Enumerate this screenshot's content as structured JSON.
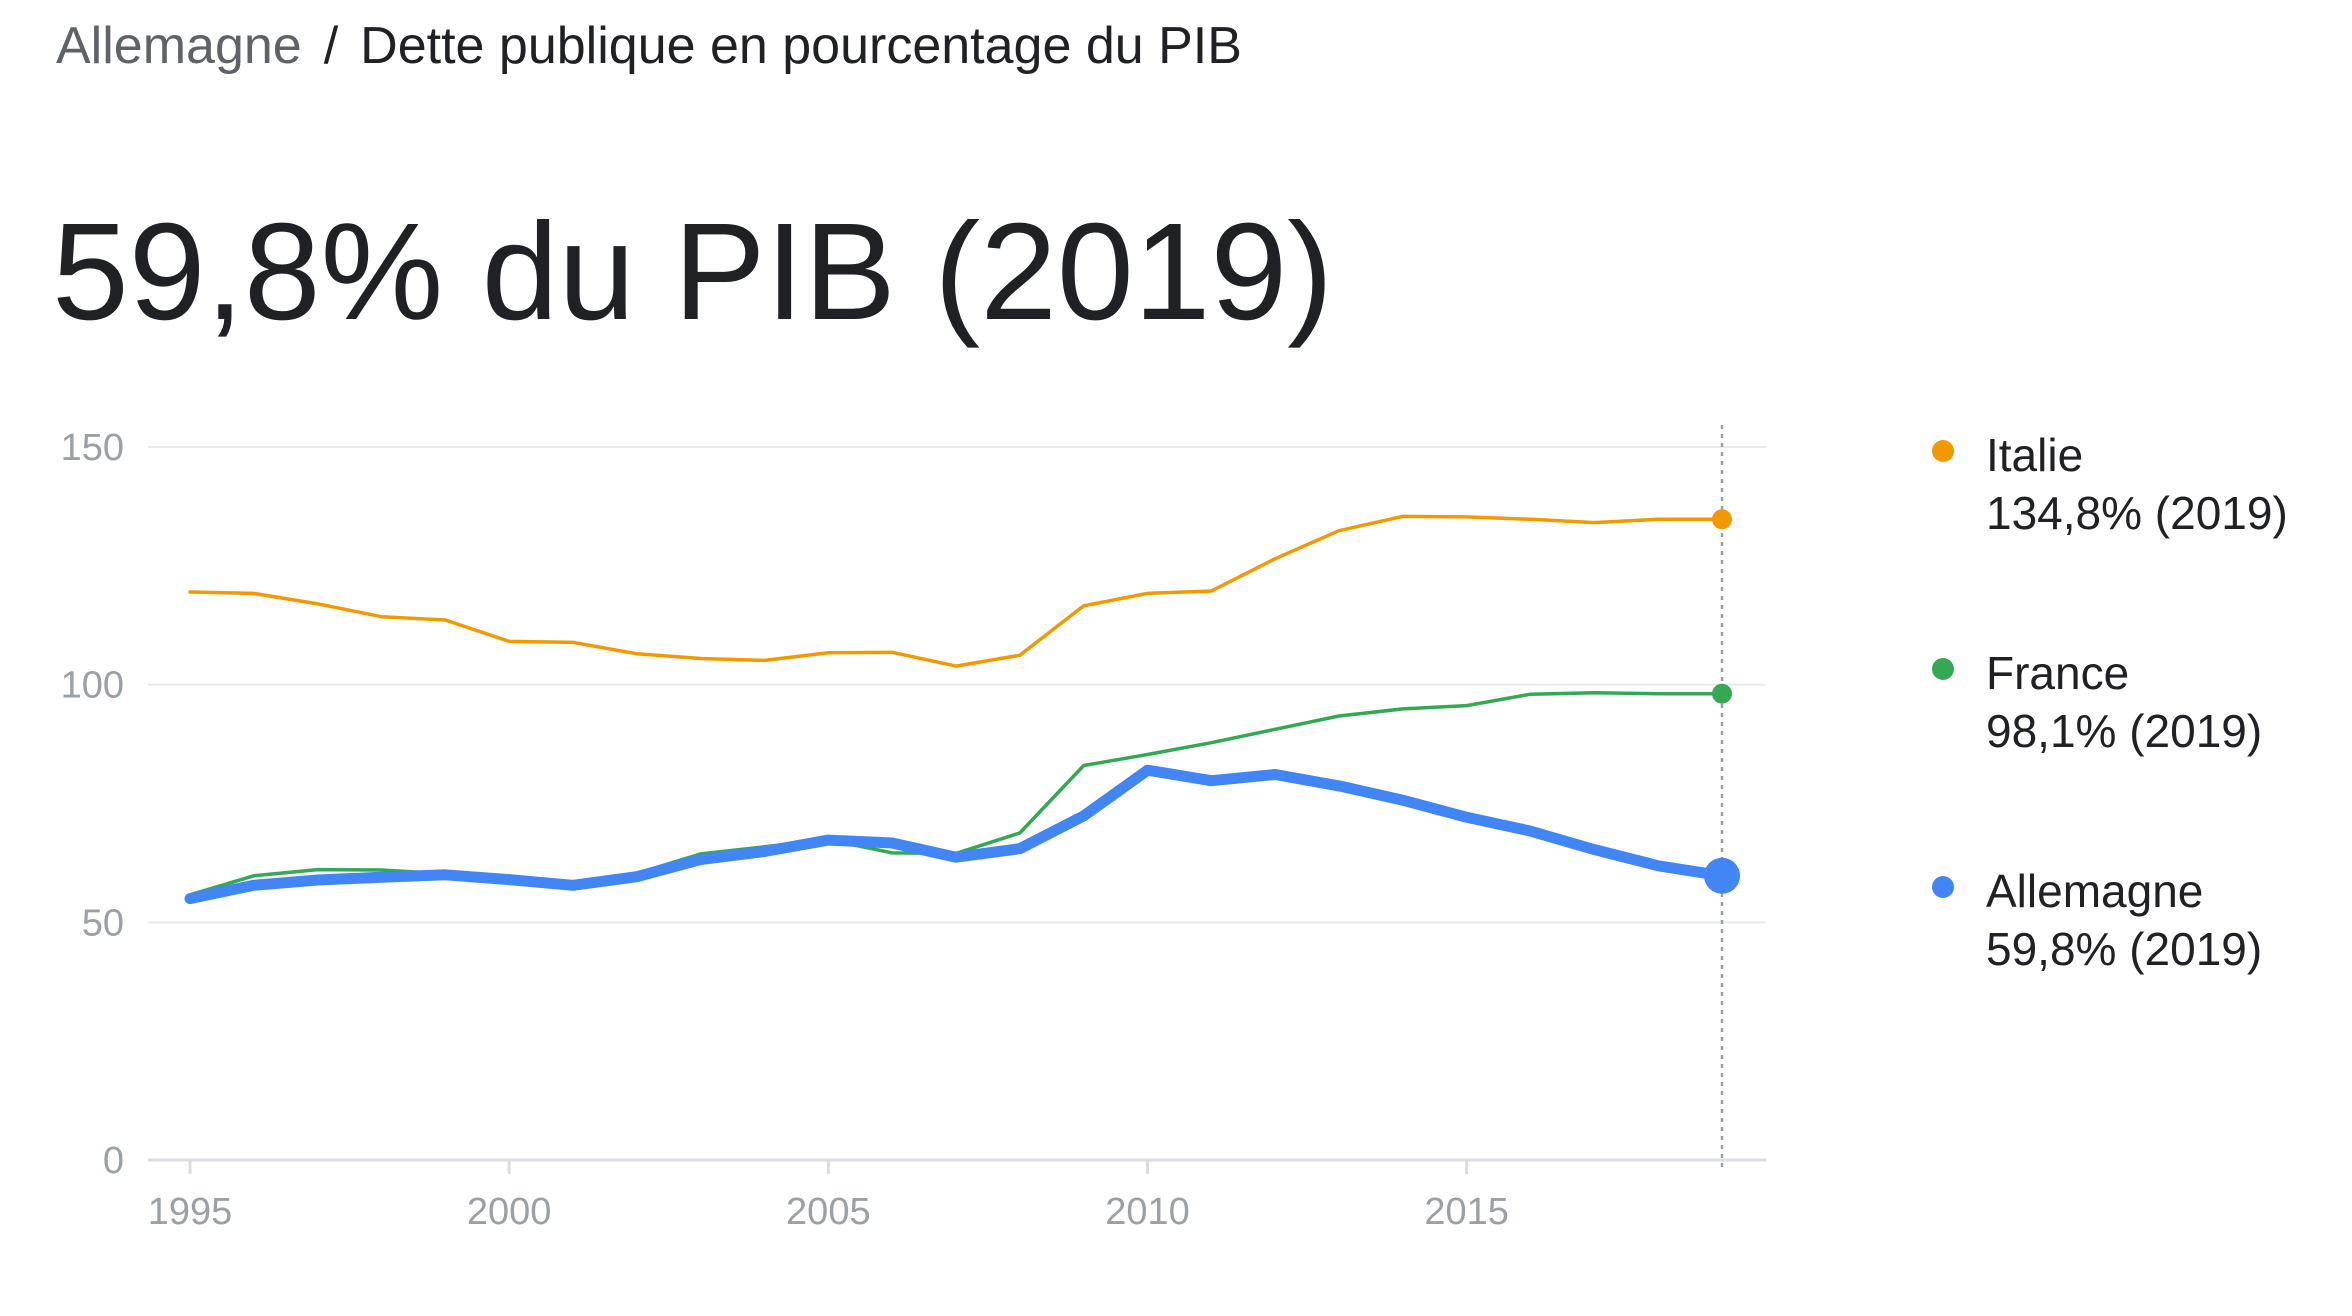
{
  "breadcrumb": {
    "parent": "Allemagne",
    "separator": "/",
    "current": "Dette publique en pourcentage du PIB"
  },
  "headline": "59,8% du PIB (2019)",
  "legend": [
    {
      "name": "Italie",
      "value": "134,8% (2019)",
      "color": "#f29900"
    },
    {
      "name": "France",
      "value": "98,1% (2019)",
      "color": "#34a853"
    },
    {
      "name": "Allemagne",
      "value": "59,8% (2019)",
      "color": "#4285f4"
    }
  ],
  "chart_data": {
    "type": "line",
    "xlabel": "",
    "ylabel": "",
    "xlim": [
      1995,
      2019
    ],
    "ylim": [
      0,
      150
    ],
    "x_ticks": [
      "1995",
      "2000",
      "2005",
      "2010",
      "2015"
    ],
    "y_ticks": [
      "0",
      "50",
      "100",
      "150"
    ],
    "grid": "horizontal",
    "legend_position": "right",
    "highlight_year": 2019,
    "x": [
      1995,
      1996,
      1997,
      1998,
      1999,
      2000,
      2001,
      2002,
      2003,
      2004,
      2005,
      2006,
      2007,
      2008,
      2009,
      2010,
      2011,
      2012,
      2013,
      2014,
      2015,
      2016,
      2017,
      2018,
      2019
    ],
    "series": [
      {
        "name": "Italie",
        "color": "#f29900",
        "emphasis": "normal",
        "values": [
          119.5,
          119.2,
          117.0,
          114.3,
          113.6,
          109.1,
          108.9,
          106.5,
          105.5,
          105.1,
          106.7,
          106.8,
          103.9,
          106.2,
          116.6,
          119.2,
          119.7,
          126.5,
          132.4,
          135.4,
          135.3,
          134.8,
          134.1,
          134.8,
          134.8
        ]
      },
      {
        "name": "France",
        "color": "#34a853",
        "emphasis": "normal",
        "values": [
          55.8,
          59.8,
          61.1,
          61.0,
          60.2,
          58.9,
          58.3,
          60.3,
          64.4,
          65.9,
          67.4,
          64.6,
          64.5,
          68.8,
          83.0,
          85.3,
          87.8,
          90.6,
          93.4,
          94.9,
          95.6,
          98.0,
          98.3,
          98.1,
          98.1
        ]
      },
      {
        "name": "Allemagne",
        "color": "#4285f4",
        "emphasis": "bold",
        "values": [
          55.0,
          57.8,
          58.9,
          59.5,
          60.0,
          59.0,
          57.8,
          59.6,
          63.2,
          64.9,
          67.3,
          66.7,
          63.7,
          65.5,
          72.4,
          82.0,
          79.8,
          81.1,
          78.7,
          75.7,
          72.1,
          69.2,
          65.3,
          61.9,
          59.8
        ]
      }
    ]
  }
}
